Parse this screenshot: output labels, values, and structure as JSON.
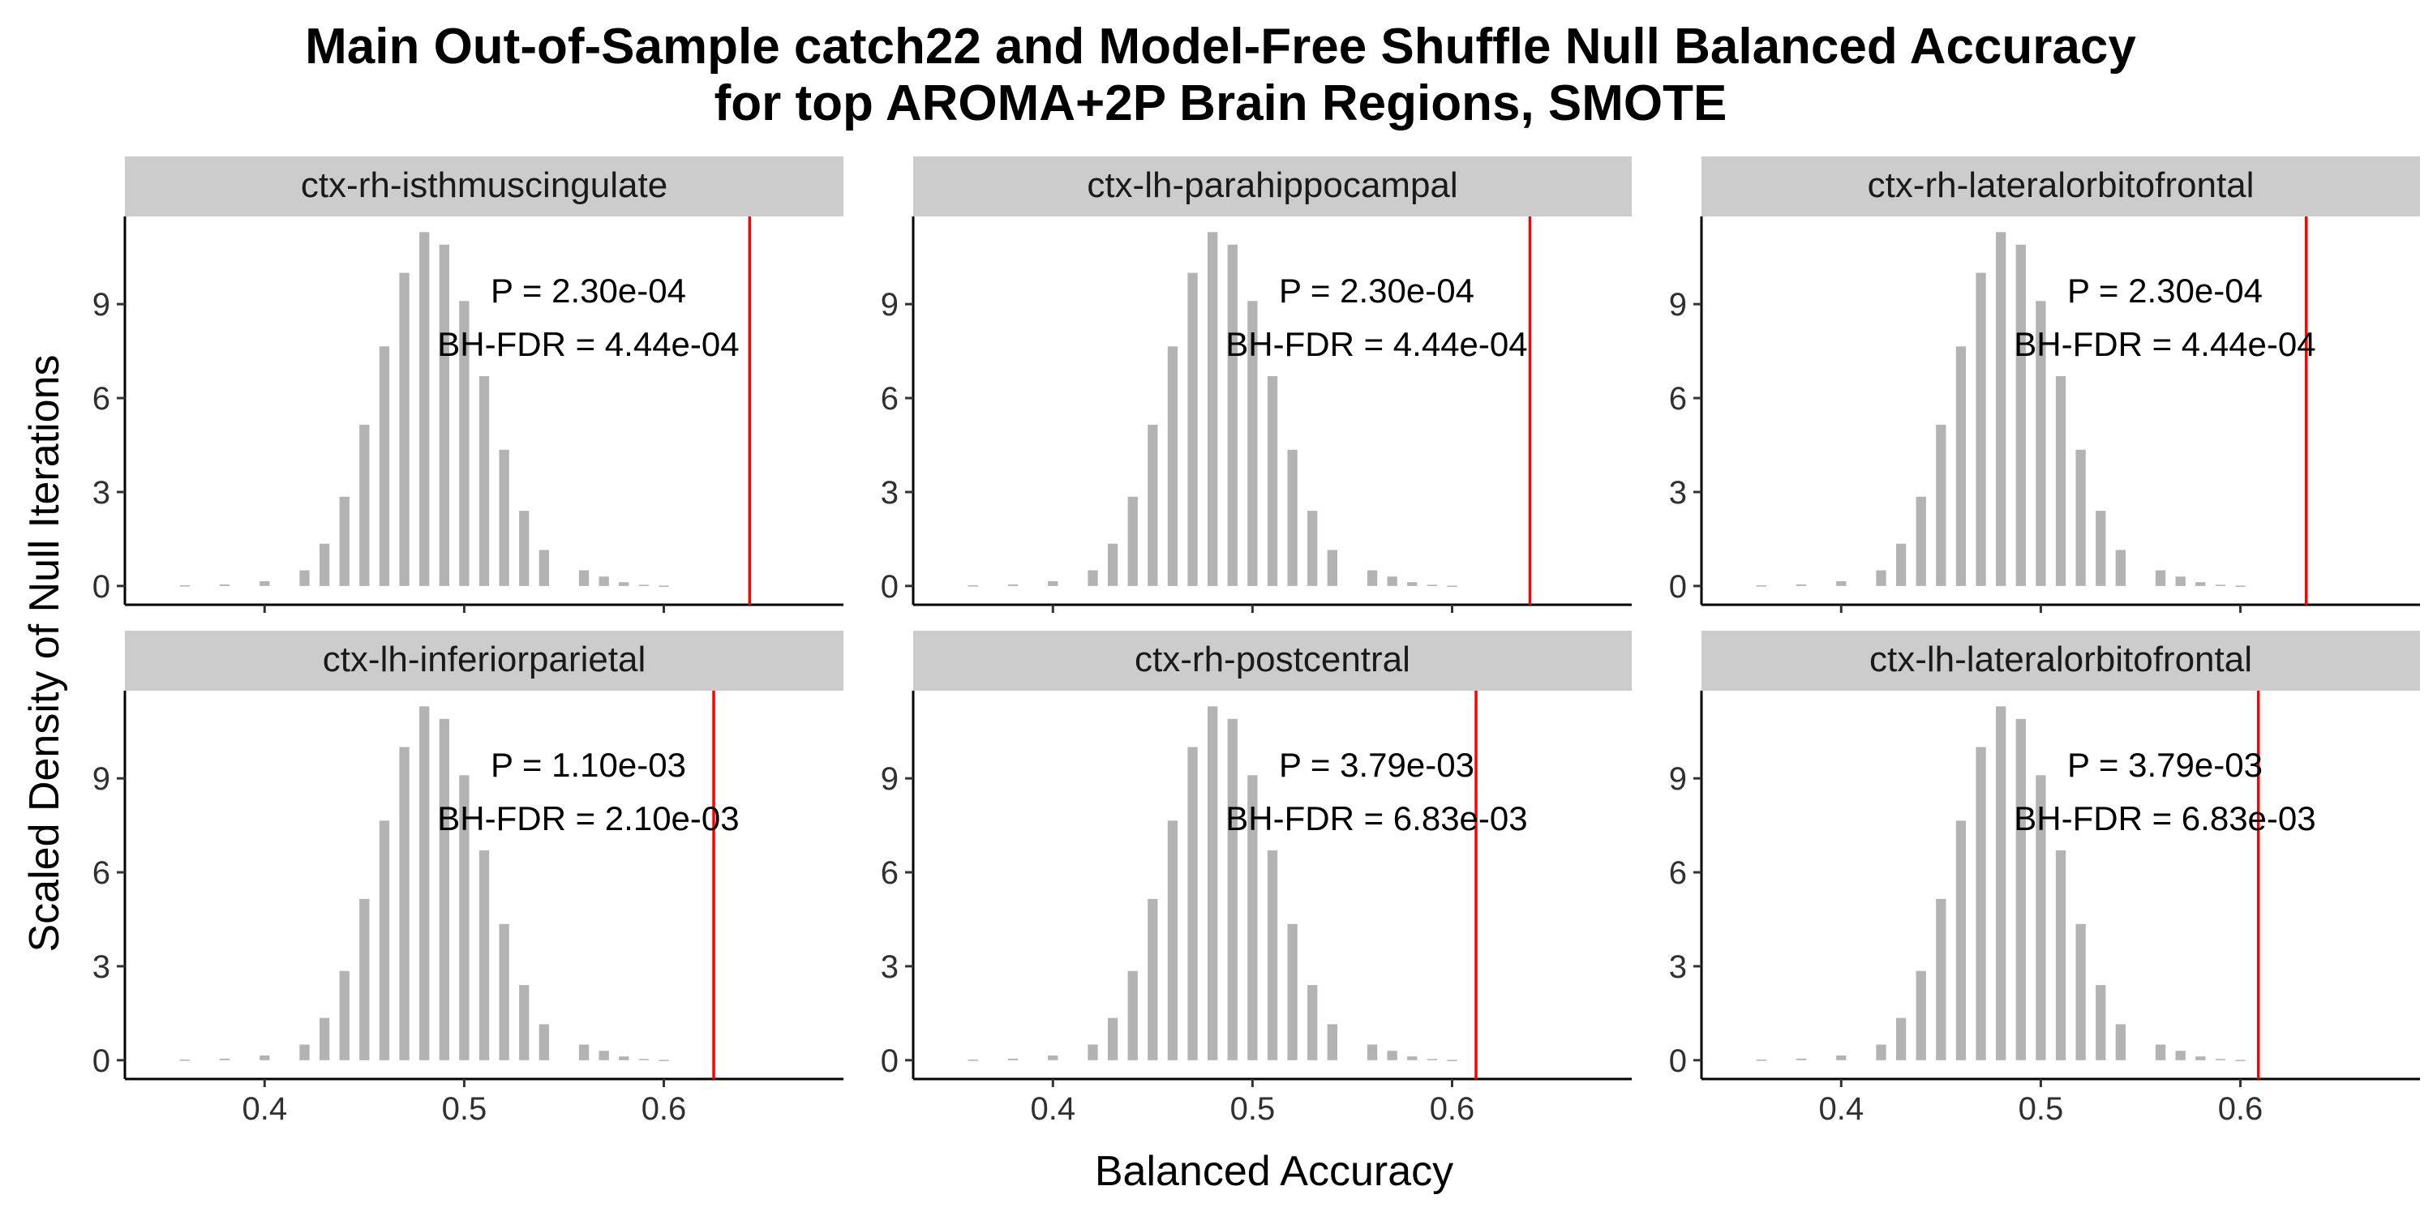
{
  "title_line1": "Main Out-of-Sample catch22 and Model-Free Shuffle Null Balanced Accuracy",
  "title_line2": "for top AROMA+2P Brain Regions, SMOTE",
  "colors": {
    "bars": "#b3b3b3",
    "observed_line": "#ff0000",
    "strip": "#cccccc",
    "axis": "#000000"
  },
  "chart_data": {
    "type": "bar",
    "xlabel": "Balanced Accuracy",
    "ylabel": "Scaled Density of Null Iterations",
    "xlim": [
      0.33,
      0.69
    ],
    "ylim": [
      -0.6,
      11.8
    ],
    "x_ticks": [
      0.4,
      0.5,
      0.6
    ],
    "x_tick_labels": [
      "0.4",
      "0.5",
      "0.6"
    ],
    "y_ticks": [
      0,
      3,
      6,
      9
    ],
    "y_tick_labels": [
      "0",
      "3",
      "6",
      "9"
    ],
    "grid": false,
    "null_histogram": {
      "x": [
        0.36,
        0.37,
        0.38,
        0.39,
        0.4,
        0.41,
        0.42,
        0.43,
        0.44,
        0.45,
        0.46,
        0.47,
        0.48,
        0.49,
        0.5,
        0.51,
        0.52,
        0.53,
        0.54,
        0.55,
        0.56,
        0.57,
        0.58,
        0.59,
        0.6,
        0.61,
        0.62,
        0.63,
        0.64,
        0.65
      ],
      "values": [
        0.02,
        0.0,
        0.05,
        0.0,
        0.15,
        0.0,
        0.5,
        1.35,
        2.85,
        5.15,
        7.65,
        10.0,
        11.3,
        10.9,
        9.1,
        6.7,
        4.35,
        2.4,
        1.15,
        0.0,
        0.5,
        0.3,
        0.12,
        0.04,
        0.01,
        0.0,
        0.0,
        0.0,
        0.0,
        0.0
      ]
    },
    "panels": [
      {
        "region": "ctx-rh-isthmuscingulate",
        "observed": 0.643,
        "p_text": "P = 2.30e-04",
        "fdr_text": "BH-FDR = 4.44e-04"
      },
      {
        "region": "ctx-lh-parahippocampal",
        "observed": 0.639,
        "p_text": "P = 2.30e-04",
        "fdr_text": "BH-FDR = 4.44e-04"
      },
      {
        "region": "ctx-rh-lateralorbitofrontal",
        "observed": 0.633,
        "p_text": "P = 2.30e-04",
        "fdr_text": "BH-FDR = 4.44e-04"
      },
      {
        "region": "ctx-lh-inferiorparietal",
        "observed": 0.625,
        "p_text": "P = 1.10e-03",
        "fdr_text": "BH-FDR = 2.10e-03"
      },
      {
        "region": "ctx-rh-postcentral",
        "observed": 0.612,
        "p_text": "P = 3.79e-03",
        "fdr_text": "BH-FDR = 6.83e-03"
      },
      {
        "region": "ctx-lh-lateralorbitofrontal",
        "observed": 0.609,
        "p_text": "P = 3.79e-03",
        "fdr_text": "BH-FDR = 6.83e-03"
      }
    ]
  }
}
